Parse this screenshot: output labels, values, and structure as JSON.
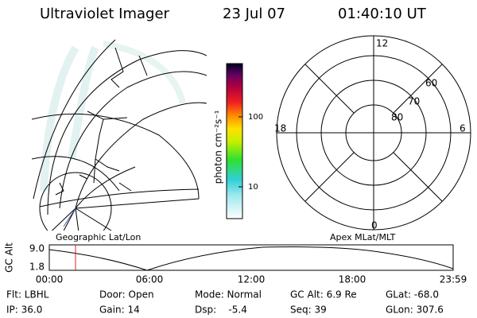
{
  "header": {
    "instrument": "Ultraviolet Imager",
    "date": "23 Jul 07",
    "time": "01:40:10 UT"
  },
  "colorbar": {
    "label": "photon cm⁻²s⁻¹",
    "ticks": [
      "100",
      "10"
    ]
  },
  "map_caption": "Geographic Lat/Lon",
  "polar": {
    "caption": "Apex MLat/MLT",
    "mlt_labels": [
      "12",
      "18",
      "6",
      "0"
    ],
    "lat_labels": [
      "60",
      "70",
      "80"
    ]
  },
  "altitude_plot": {
    "y_label": "GC Alt",
    "y_ticks": [
      "9.0",
      "1.8"
    ],
    "x_ticks": [
      "00:00",
      "06:00",
      "12:00",
      "18:00",
      "23:59"
    ]
  },
  "status": {
    "row1": [
      "Flt: LBHL",
      "Door: Open",
      "Mode: Normal",
      "GC Alt: 6.9 Re",
      "GLat: -68.0"
    ],
    "row2": [
      "IP: 36.0",
      "Gain: 14",
      "Dsp:    -5.4",
      "Seq: 39",
      "GLon: 307.6"
    ]
  }
}
